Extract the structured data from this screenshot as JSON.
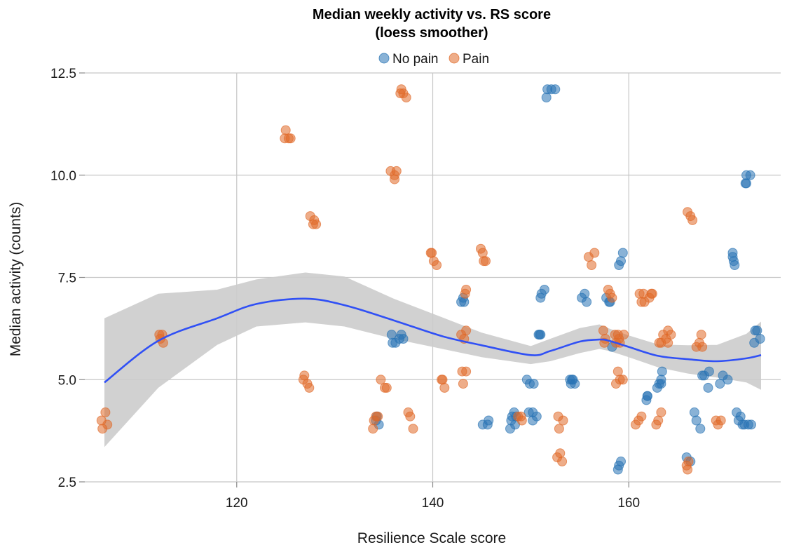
{
  "chart_data": {
    "type": "scatter",
    "title_line1": "Median weekly activity vs. RS score",
    "title_line2": "(loess smoother)",
    "xlabel": "Resilience Scale score",
    "ylabel": "Median activity (counts)",
    "xlim": [
      104.5,
      175.5
    ],
    "ylim": [
      2.5,
      12.5
    ],
    "x_ticks": [
      120,
      140,
      160
    ],
    "y_ticks": [
      2.5,
      5.0,
      7.5,
      10.0,
      12.5
    ],
    "y_tick_labels": [
      "2.5",
      "5.0",
      "7.5",
      "10.0",
      "12.5"
    ],
    "grid": true,
    "legend_position": "top",
    "series": [
      {
        "name": "No pain",
        "color": "#2873b4",
        "points": [
          [
            135.8,
            6.1
          ],
          [
            135.9,
            5.9
          ],
          [
            136.2,
            5.9
          ],
          [
            136.6,
            6.0
          ],
          [
            136.8,
            6.1
          ],
          [
            137.0,
            6.0
          ],
          [
            134.3,
            4.1
          ],
          [
            134.5,
            3.9
          ],
          [
            134.2,
            4.0
          ],
          [
            142.9,
            6.9
          ],
          [
            143.1,
            7.0
          ],
          [
            143.2,
            6.9
          ],
          [
            145.1,
            3.9
          ],
          [
            145.6,
            3.9
          ],
          [
            145.7,
            4.0
          ],
          [
            147.9,
            3.8
          ],
          [
            148.0,
            4.0
          ],
          [
            148.1,
            4.1
          ],
          [
            148.3,
            4.2
          ],
          [
            148.5,
            4.1
          ],
          [
            148.4,
            3.9
          ],
          [
            149.8,
            4.2
          ],
          [
            150.2,
            4.0
          ],
          [
            150.6,
            4.1
          ],
          [
            150.2,
            4.2
          ],
          [
            149.6,
            5.0
          ],
          [
            149.9,
            4.9
          ],
          [
            150.3,
            4.9
          ],
          [
            150.8,
            6.1
          ],
          [
            151.0,
            6.1
          ],
          [
            150.9,
            6.1
          ],
          [
            151.0,
            7.0
          ],
          [
            151.1,
            7.1
          ],
          [
            151.4,
            7.2
          ],
          [
            151.7,
            12.1
          ],
          [
            152.1,
            12.1
          ],
          [
            152.5,
            12.1
          ],
          [
            151.6,
            11.9
          ],
          [
            154.0,
            5.0
          ],
          [
            154.1,
            4.9
          ],
          [
            154.2,
            5.0
          ],
          [
            154.5,
            4.9
          ],
          [
            154.3,
            5.0
          ],
          [
            155.2,
            7.0
          ],
          [
            155.5,
            7.1
          ],
          [
            155.7,
            6.9
          ],
          [
            157.7,
            7.0
          ],
          [
            158.0,
            6.9
          ],
          [
            158.1,
            6.9
          ],
          [
            158.3,
            5.8
          ],
          [
            159.0,
            7.8
          ],
          [
            159.2,
            7.9
          ],
          [
            159.4,
            8.1
          ],
          [
            158.9,
            2.8
          ],
          [
            159.0,
            2.9
          ],
          [
            159.2,
            3.0
          ],
          [
            161.8,
            4.5
          ],
          [
            161.9,
            4.6
          ],
          [
            161.9,
            4.6
          ],
          [
            162.9,
            4.8
          ],
          [
            163.1,
            4.9
          ],
          [
            163.3,
            5.0
          ],
          [
            163.4,
            5.2
          ],
          [
            163.3,
            4.9
          ],
          [
            165.9,
            3.1
          ],
          [
            166.3,
            3.0
          ],
          [
            166.7,
            4.2
          ],
          [
            166.9,
            4.0
          ],
          [
            167.3,
            3.8
          ],
          [
            167.5,
            5.1
          ],
          [
            167.7,
            5.1
          ],
          [
            168.1,
            4.8
          ],
          [
            168.2,
            5.2
          ],
          [
            169.3,
            4.9
          ],
          [
            169.6,
            5.1
          ],
          [
            170.1,
            5.0
          ],
          [
            170.6,
            8.1
          ],
          [
            170.6,
            8.0
          ],
          [
            170.7,
            7.9
          ],
          [
            170.8,
            7.8
          ],
          [
            171.0,
            4.2
          ],
          [
            171.2,
            4.0
          ],
          [
            171.4,
            4.1
          ],
          [
            171.6,
            3.9
          ],
          [
            171.8,
            3.9
          ],
          [
            172.2,
            3.9
          ],
          [
            172.5,
            3.9
          ],
          [
            171.9,
            9.8
          ],
          [
            172.0,
            10.0
          ],
          [
            172.4,
            10.0
          ],
          [
            172.0,
            9.8
          ],
          [
            172.8,
            5.9
          ],
          [
            172.9,
            6.2
          ],
          [
            173.1,
            6.2
          ],
          [
            173.4,
            6.0
          ]
        ]
      },
      {
        "name": "Pain",
        "color": "#e06928",
        "points": [
          [
            106.2,
            4.0
          ],
          [
            106.3,
            3.8
          ],
          [
            106.6,
            4.2
          ],
          [
            106.8,
            3.9
          ],
          [
            112.1,
            6.1
          ],
          [
            112.2,
            6.0
          ],
          [
            112.4,
            6.1
          ],
          [
            112.5,
            5.9
          ],
          [
            124.9,
            10.9
          ],
          [
            125.0,
            11.1
          ],
          [
            125.3,
            10.9
          ],
          [
            125.5,
            10.9
          ],
          [
            126.8,
            5.0
          ],
          [
            126.9,
            5.1
          ],
          [
            127.2,
            4.9
          ],
          [
            127.4,
            4.8
          ],
          [
            127.5,
            9.0
          ],
          [
            127.9,
            8.9
          ],
          [
            128.1,
            8.8
          ],
          [
            127.8,
            8.8
          ],
          [
            133.9,
            3.8
          ],
          [
            134.2,
            4.1
          ],
          [
            134.4,
            4.1
          ],
          [
            134.0,
            4.0
          ],
          [
            134.7,
            5.0
          ],
          [
            135.1,
            4.8
          ],
          [
            135.3,
            4.8
          ],
          [
            135.7,
            10.1
          ],
          [
            136.1,
            10.0
          ],
          [
            136.3,
            10.1
          ],
          [
            136.1,
            9.9
          ],
          [
            136.7,
            12.0
          ],
          [
            136.8,
            12.1
          ],
          [
            137.0,
            12.0
          ],
          [
            137.3,
            11.9
          ],
          [
            137.5,
            4.2
          ],
          [
            137.7,
            4.1
          ],
          [
            138.0,
            3.8
          ],
          [
            139.8,
            8.1
          ],
          [
            139.9,
            8.1
          ],
          [
            140.1,
            7.9
          ],
          [
            140.4,
            7.8
          ],
          [
            140.9,
            5.0
          ],
          [
            141.0,
            5.0
          ],
          [
            141.2,
            4.8
          ],
          [
            142.9,
            6.1
          ],
          [
            143.0,
            5.2
          ],
          [
            143.1,
            4.9
          ],
          [
            143.2,
            6.0
          ],
          [
            143.4,
            6.2
          ],
          [
            143.4,
            5.2
          ],
          [
            143.3,
            7.1
          ],
          [
            143.4,
            7.2
          ],
          [
            144.9,
            8.2
          ],
          [
            145.1,
            8.1
          ],
          [
            145.2,
            7.9
          ],
          [
            145.4,
            7.9
          ],
          [
            148.7,
            4.1
          ],
          [
            149.0,
            4.1
          ],
          [
            149.1,
            4.0
          ],
          [
            152.8,
            4.1
          ],
          [
            152.9,
            3.8
          ],
          [
            153.3,
            4.0
          ],
          [
            152.7,
            3.1
          ],
          [
            153.0,
            3.2
          ],
          [
            153.2,
            3.0
          ],
          [
            155.9,
            8.0
          ],
          [
            156.2,
            7.8
          ],
          [
            156.5,
            8.1
          ],
          [
            157.4,
            6.2
          ],
          [
            157.6,
            6.0
          ],
          [
            157.5,
            5.9
          ],
          [
            157.9,
            7.2
          ],
          [
            158.1,
            7.1
          ],
          [
            158.3,
            7.0
          ],
          [
            158.6,
            6.1
          ],
          [
            158.7,
            5.9
          ],
          [
            159.0,
            6.0
          ],
          [
            159.1,
            5.9
          ],
          [
            158.9,
            6.1
          ],
          [
            158.7,
            4.9
          ],
          [
            158.9,
            5.2
          ],
          [
            159.1,
            5.0
          ],
          [
            159.4,
            5.0
          ],
          [
            159.5,
            6.1
          ],
          [
            160.7,
            3.9
          ],
          [
            161.0,
            4.0
          ],
          [
            161.3,
            4.1
          ],
          [
            161.1,
            7.1
          ],
          [
            161.3,
            6.9
          ],
          [
            161.5,
            7.1
          ],
          [
            161.6,
            6.9
          ],
          [
            162.1,
            7.0
          ],
          [
            162.3,
            7.1
          ],
          [
            162.4,
            7.1
          ],
          [
            162.8,
            3.9
          ],
          [
            163.0,
            4.0
          ],
          [
            163.3,
            4.2
          ],
          [
            163.1,
            5.9
          ],
          [
            163.3,
            5.9
          ],
          [
            163.5,
            6.1
          ],
          [
            163.8,
            6.0
          ],
          [
            164.0,
            5.9
          ],
          [
            164.0,
            6.2
          ],
          [
            164.3,
            6.1
          ],
          [
            165.9,
            2.9
          ],
          [
            166.0,
            2.8
          ],
          [
            166.1,
            3.0
          ],
          [
            166.0,
            9.1
          ],
          [
            166.3,
            9.0
          ],
          [
            166.5,
            8.9
          ],
          [
            166.9,
            5.8
          ],
          [
            167.2,
            5.9
          ],
          [
            167.4,
            6.1
          ],
          [
            167.5,
            5.8
          ],
          [
            168.9,
            4.0
          ],
          [
            169.1,
            3.9
          ],
          [
            169.4,
            4.0
          ]
        ]
      }
    ],
    "smoother": {
      "color": "#3050f5",
      "band_color": "#cccccc",
      "x": [
        106.5,
        112,
        118,
        122,
        127,
        131,
        136,
        141,
        145,
        150,
        152,
        155,
        157,
        158,
        160,
        163,
        166,
        169,
        172,
        173.5
      ],
      "y": [
        4.93,
        5.95,
        6.5,
        6.85,
        6.98,
        6.82,
        6.45,
        6.06,
        5.84,
        5.6,
        5.7,
        5.93,
        5.98,
        5.95,
        5.8,
        5.58,
        5.5,
        5.45,
        5.52,
        5.6
      ],
      "lower": [
        3.35,
        4.8,
        5.85,
        6.3,
        6.4,
        6.3,
        6.0,
        5.75,
        5.55,
        5.38,
        5.45,
        5.65,
        5.75,
        5.7,
        5.55,
        5.3,
        5.15,
        5.05,
        4.93,
        4.75
      ],
      "upper": [
        6.5,
        7.1,
        7.2,
        7.45,
        7.62,
        7.52,
        6.98,
        6.52,
        6.15,
        5.82,
        6.0,
        6.26,
        6.35,
        6.25,
        6.08,
        5.86,
        5.84,
        5.85,
        6.12,
        6.42
      ]
    }
  }
}
